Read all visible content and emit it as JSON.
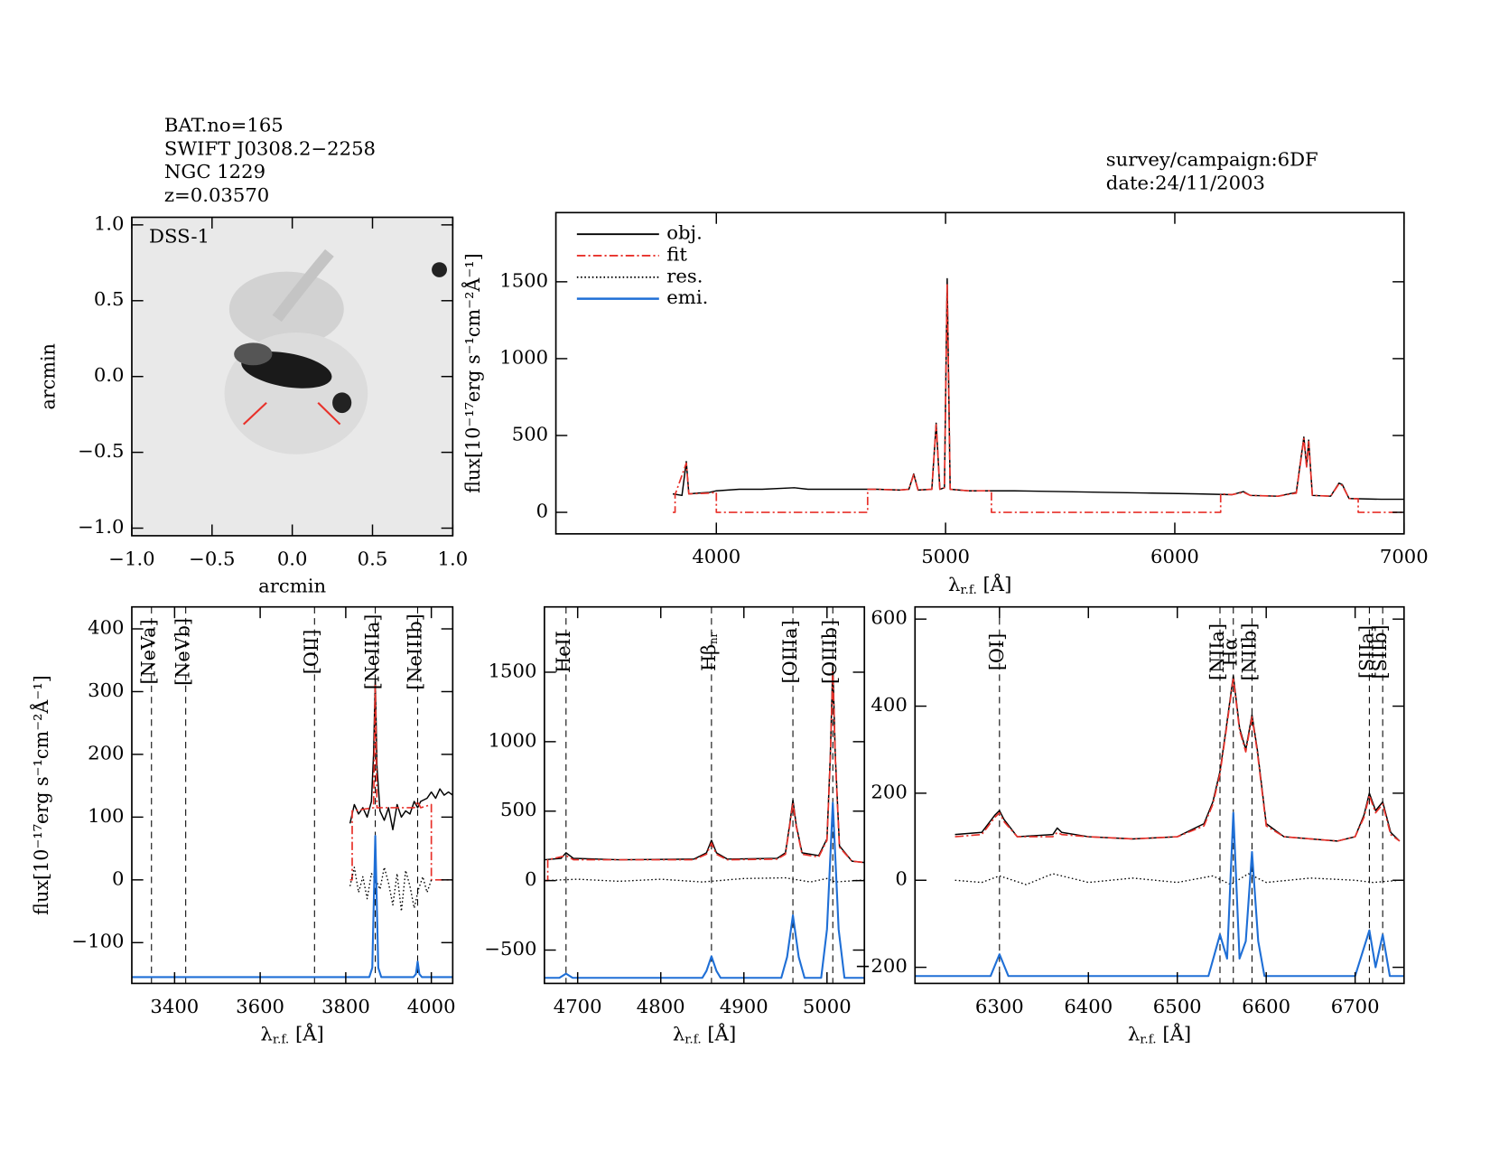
{
  "header": {
    "lines": [
      "BAT.no=165",
      "SWIFT J0308.2−2258",
      "NGC 1229",
      "z=0.03570"
    ],
    "right": [
      "survey/campaign:6DF",
      "date:24/11/2003"
    ]
  },
  "chart_data": [
    {
      "type": "image",
      "title": "DSS-1",
      "xlabel": "arcmin",
      "ylabel": "arcmin",
      "xlim": [
        -1,
        1
      ],
      "ylim": [
        -1.05,
        1.05
      ],
      "xticks": [
        {
          "value": -1,
          "label": "−1.0"
        },
        {
          "value": -0.5,
          "label": "−0.5"
        },
        {
          "value": 0,
          "label": "0.0"
        },
        {
          "value": 0.5,
          "label": "0.5"
        },
        {
          "value": 1,
          "label": "1.0"
        }
      ],
      "yticks": [
        {
          "value": -1,
          "label": "−1.0"
        },
        {
          "value": -0.5,
          "label": "−0.5"
        },
        {
          "value": 0,
          "label": "0.0"
        },
        {
          "value": 0.5,
          "label": "0.5"
        },
        {
          "value": 1,
          "label": "1.0"
        }
      ]
    },
    {
      "type": "line",
      "xlabel": "λ",
      "xlabel_sub": "r.f.",
      "xlabel_unit": " [Å]",
      "ylabel": "flux[10⁻¹⁷erg s⁻¹cm⁻²Å⁻¹]",
      "xlim": [
        3300,
        7000
      ],
      "ylim": [
        -140,
        1950
      ],
      "xticks": [
        4000,
        5000,
        6000,
        7000
      ],
      "yticks": [
        0,
        500,
        1000,
        1500
      ],
      "legend": "top-left",
      "legend_entries": [
        {
          "name": "obj.",
          "color": "#000000",
          "dash": "solid"
        },
        {
          "name": "fit",
          "color": "#e8312a",
          "dash": "dashdot"
        },
        {
          "name": "res.",
          "color": "#000000",
          "dash": "dotted"
        },
        {
          "name": "emi.",
          "color": "#1f6fd6",
          "dash": "solid"
        }
      ],
      "series": [
        {
          "name": "obj.",
          "color": "#000000",
          "dash": "solid",
          "x": [
            3810,
            3850,
            3869,
            3880,
            3920,
            3970,
            4000,
            4100,
            4200,
            4340,
            4400,
            4500,
            4600,
            4700,
            4800,
            4840,
            4861,
            4880,
            4940,
            4959,
            4975,
            4995,
            5007,
            5020,
            5100,
            5300,
            5500,
            5700,
            5900,
            6100,
            6250,
            6300,
            6330,
            6450,
            6530,
            6563,
            6575,
            6584,
            6600,
            6680,
            6716,
            6731,
            6760,
            6900,
            7000
          ],
          "values": [
            120,
            110,
            330,
            120,
            125,
            130,
            140,
            150,
            150,
            160,
            150,
            150,
            150,
            150,
            145,
            150,
            250,
            145,
            150,
            580,
            150,
            160,
            1520,
            150,
            140,
            140,
            135,
            130,
            125,
            120,
            115,
            135,
            110,
            105,
            130,
            490,
            300,
            470,
            110,
            105,
            190,
            180,
            90,
            85,
            85
          ]
        },
        {
          "name": "fit",
          "color": "#e8312a",
          "dash": "dashdot",
          "x": [
            3810,
            3820,
            3820,
            3869,
            3880,
            3970,
            4000,
            4000,
            4660,
            4660,
            4700,
            4800,
            4840,
            4861,
            4880,
            4940,
            4959,
            4975,
            4995,
            5007,
            5020,
            5100,
            5200,
            5200,
            6200,
            6200,
            6250,
            6300,
            6330,
            6450,
            6530,
            6563,
            6575,
            6584,
            6600,
            6680,
            6716,
            6731,
            6760,
            6800,
            6800,
            7000
          ],
          "values": [
            0,
            0,
            115,
            320,
            120,
            125,
            130,
            0,
            0,
            150,
            150,
            145,
            150,
            245,
            145,
            150,
            570,
            150,
            160,
            1480,
            150,
            140,
            140,
            0,
            0,
            120,
            115,
            130,
            110,
            105,
            125,
            480,
            295,
            460,
            110,
            105,
            185,
            175,
            90,
            88,
            0,
            0
          ]
        }
      ]
    },
    {
      "type": "line",
      "xlabel": "λ",
      "xlabel_sub": "r.f.",
      "xlabel_unit": " [Å]",
      "ylabel": "flux[10⁻¹⁷erg s⁻¹cm⁻²Å⁻¹]",
      "xlim": [
        3300,
        4050
      ],
      "ylim": [
        -165,
        435
      ],
      "xticks": [
        3400,
        3600,
        3800,
        4000
      ],
      "yticks": [
        {
          "value": -100,
          "label": "−100"
        },
        0,
        100,
        200,
        300,
        400
      ],
      "lines": [
        {
          "label": "[NeVa]",
          "x": 3346,
          "color": "#e8312a"
        },
        {
          "label": "[NeVb]",
          "x": 3426,
          "color": "#e8312a"
        },
        {
          "label": "[OII]",
          "x": 3727,
          "color": "#e8312a"
        },
        {
          "label": "[NeIIIa]",
          "x": 3869,
          "color": "#000000"
        },
        {
          "label": "[NeIIIb]",
          "x": 3968,
          "color": "#e8312a"
        }
      ],
      "series": [
        {
          "name": "obj.",
          "color": "#000000",
          "dash": "solid",
          "x": [
            3810,
            3820,
            3830,
            3840,
            3850,
            3860,
            3865,
            3869,
            3873,
            3880,
            3890,
            3900,
            3910,
            3920,
            3930,
            3940,
            3950,
            3960,
            3968,
            3975,
            3990,
            4000,
            4010,
            4020,
            4030,
            4040,
            4050
          ],
          "values": [
            90,
            120,
            105,
            115,
            100,
            125,
            200,
            320,
            180,
            110,
            95,
            115,
            80,
            120,
            100,
            110,
            105,
            125,
            115,
            125,
            130,
            140,
            130,
            145,
            135,
            140,
            135
          ]
        },
        {
          "name": "fit",
          "color": "#e8312a",
          "dash": "dashdot",
          "x": [
            3810,
            3815,
            3815,
            3865,
            3869,
            3873,
            3960,
            3968,
            3975,
            4000,
            4000,
            4050
          ],
          "values": [
            0,
            0,
            110,
            115,
            310,
            115,
            115,
            125,
            115,
            120,
            0,
            0
          ]
        },
        {
          "name": "res.",
          "color": "#000000",
          "dash": "dotted",
          "x": [
            3810,
            3820,
            3830,
            3840,
            3850,
            3860,
            3870,
            3880,
            3890,
            3900,
            3910,
            3920,
            3930,
            3940,
            3950,
            3960,
            3970,
            3980,
            3990,
            4000
          ],
          "values": [
            -10,
            20,
            -20,
            5,
            -30,
            10,
            0,
            -15,
            20,
            -5,
            -40,
            10,
            -50,
            15,
            -10,
            -45,
            -15,
            5,
            -20,
            0
          ]
        },
        {
          "name": "emi.",
          "color": "#1f6fd6",
          "dash": "solid",
          "x": [
            3300,
            3855,
            3862,
            3866,
            3869,
            3872,
            3876,
            3883,
            3958,
            3964,
            3968,
            3972,
            3978,
            4050
          ],
          "values": [
            -155,
            -155,
            -140,
            -20,
            70,
            -20,
            -140,
            -155,
            -155,
            -150,
            -130,
            -150,
            -155,
            -155
          ]
        }
      ]
    },
    {
      "type": "line",
      "xlabel": "λ",
      "xlabel_sub": "r.f.",
      "xlabel_unit": " [Å]",
      "xlim": [
        4660,
        5045
      ],
      "ylim": [
        -740,
        1970
      ],
      "xticks": [
        4700,
        4800,
        4900,
        5000
      ],
      "yticks": [
        {
          "value": -500,
          "label": "−500"
        },
        0,
        500,
        1000,
        1500
      ],
      "lines": [
        {
          "label": "HeII",
          "x": 4686,
          "color": "#000000"
        },
        {
          "label": "Hβ",
          "sub": "nr",
          "x": 4861,
          "color": "#000000"
        },
        {
          "label": "[OIIIa]",
          "x": 4959,
          "color": "#000000"
        },
        {
          "label": "[OIIIb]",
          "x": 5007,
          "color": "#000000"
        }
      ],
      "series": [
        {
          "name": "obj.",
          "color": "#000000",
          "dash": "solid",
          "x": [
            4660,
            4680,
            4686,
            4695,
            4750,
            4840,
            4855,
            4861,
            4867,
            4880,
            4940,
            4950,
            4955,
            4959,
            4963,
            4970,
            4990,
            5000,
            5004,
            5007,
            5010,
            5015,
            5030,
            5045
          ],
          "values": [
            150,
            160,
            200,
            160,
            150,
            155,
            200,
            290,
            200,
            155,
            160,
            200,
            400,
            580,
            400,
            200,
            180,
            300,
            900,
            1560,
            900,
            250,
            140,
            130
          ]
        },
        {
          "name": "fit",
          "color": "#e8312a",
          "dash": "dashdot",
          "x": [
            4660,
            4664,
            4664,
            4686,
            4695,
            4750,
            4840,
            4855,
            4861,
            4867,
            4880,
            4940,
            4950,
            4955,
            4959,
            4963,
            4970,
            4990,
            5000,
            5004,
            5007,
            5010,
            5015,
            5030,
            5045
          ],
          "values": [
            0,
            0,
            150,
            180,
            150,
            150,
            150,
            190,
            270,
            190,
            150,
            155,
            190,
            390,
            560,
            390,
            190,
            170,
            290,
            880,
            1500,
            880,
            240,
            140,
            130
          ]
        },
        {
          "name": "res.",
          "color": "#000000",
          "dash": "dotted",
          "x": [
            4660,
            4700,
            4750,
            4800,
            4850,
            4900,
            4950,
            4980,
            5000,
            5010,
            5045
          ],
          "values": [
            0,
            10,
            -5,
            10,
            -10,
            15,
            20,
            -10,
            15,
            -10,
            5
          ]
        },
        {
          "name": "emi.",
          "color": "#1f6fd6",
          "dash": "solid",
          "x": [
            4660,
            4678,
            4686,
            4694,
            4850,
            4855,
            4861,
            4867,
            4872,
            4945,
            4952,
            4959,
            4966,
            4973,
            4993,
            5000,
            5007,
            5014,
            5021,
            5045
          ],
          "values": [
            -700,
            -700,
            -670,
            -700,
            -700,
            -650,
            -545,
            -650,
            -700,
            -700,
            -550,
            -250,
            -550,
            -700,
            -700,
            -350,
            560,
            -350,
            -700,
            -700
          ]
        }
      ]
    },
    {
      "type": "line",
      "xlabel": "λ",
      "xlabel_sub": "r.f.",
      "xlabel_unit": " [Å]",
      "xlim": [
        6205,
        6755
      ],
      "ylim": [
        -237,
        628
      ],
      "xticks": [
        6300,
        6400,
        6500,
        6600,
        6700
      ],
      "yticks": [
        {
          "value": -200,
          "label": "−200"
        },
        0,
        200,
        400,
        600
      ],
      "lines": [
        {
          "label": "[OI]",
          "x": 6300,
          "color": "#000000"
        },
        {
          "label": "[NIIa]",
          "x": 6548,
          "color": "#000000"
        },
        {
          "label": "Hα",
          "x": 6563,
          "color": "#000000"
        },
        {
          "label": "[NIIb]",
          "x": 6584,
          "color": "#000000"
        },
        {
          "label": "[SIIa]",
          "x": 6716,
          "color": "#000000"
        },
        {
          "label": "[SIIb]",
          "x": 6731,
          "color": "#000000"
        }
      ],
      "series": [
        {
          "name": "obj.",
          "color": "#000000",
          "dash": "solid",
          "x": [
            6250,
            6280,
            6295,
            6300,
            6305,
            6320,
            6360,
            6365,
            6370,
            6400,
            6450,
            6500,
            6530,
            6540,
            6548,
            6555,
            6563,
            6570,
            6577,
            6584,
            6590,
            6600,
            6620,
            6680,
            6700,
            6710,
            6716,
            6723,
            6731,
            6740,
            6750
          ],
          "values": [
            105,
            110,
            150,
            160,
            140,
            100,
            105,
            120,
            110,
            100,
            95,
            100,
            130,
            180,
            250,
            350,
            470,
            350,
            300,
            380,
            300,
            130,
            100,
            90,
            100,
            150,
            200,
            160,
            180,
            110,
            90
          ]
        },
        {
          "name": "fit",
          "color": "#e8312a",
          "dash": "dashdot",
          "x": [
            6250,
            6280,
            6295,
            6300,
            6305,
            6320,
            6360,
            6365,
            6370,
            6400,
            6450,
            6500,
            6530,
            6540,
            6548,
            6555,
            6563,
            6570,
            6577,
            6584,
            6590,
            6600,
            6620,
            6680,
            6700,
            6710,
            6716,
            6723,
            6731,
            6740,
            6750
          ],
          "values": [
            100,
            105,
            145,
            155,
            135,
            100,
            100,
            110,
            105,
            100,
            95,
            100,
            125,
            175,
            245,
            345,
            465,
            345,
            295,
            375,
            295,
            125,
            100,
            90,
            100,
            145,
            195,
            155,
            175,
            105,
            90
          ]
        },
        {
          "name": "res.",
          "color": "#000000",
          "dash": "dotted",
          "x": [
            6250,
            6280,
            6300,
            6330,
            6360,
            6400,
            6450,
            6500,
            6540,
            6560,
            6580,
            6600,
            6650,
            6700,
            6720,
            6750
          ],
          "values": [
            0,
            -5,
            10,
            -10,
            15,
            -5,
            5,
            -5,
            10,
            -10,
            15,
            -5,
            5,
            0,
            -5,
            0
          ]
        },
        {
          "name": "emi.",
          "color": "#1f6fd6",
          "dash": "solid",
          "x": [
            6205,
            6290,
            6300,
            6310,
            6535,
            6548,
            6556,
            6563,
            6570,
            6577,
            6584,
            6591,
            6598,
            6700,
            6716,
            6723,
            6731,
            6739,
            6755
          ],
          "values": [
            -220,
            -220,
            -170,
            -220,
            -220,
            -125,
            -180,
            155,
            -180,
            -140,
            65,
            -140,
            -220,
            -220,
            -115,
            -200,
            -125,
            -220,
            -220
          ]
        }
      ]
    }
  ]
}
